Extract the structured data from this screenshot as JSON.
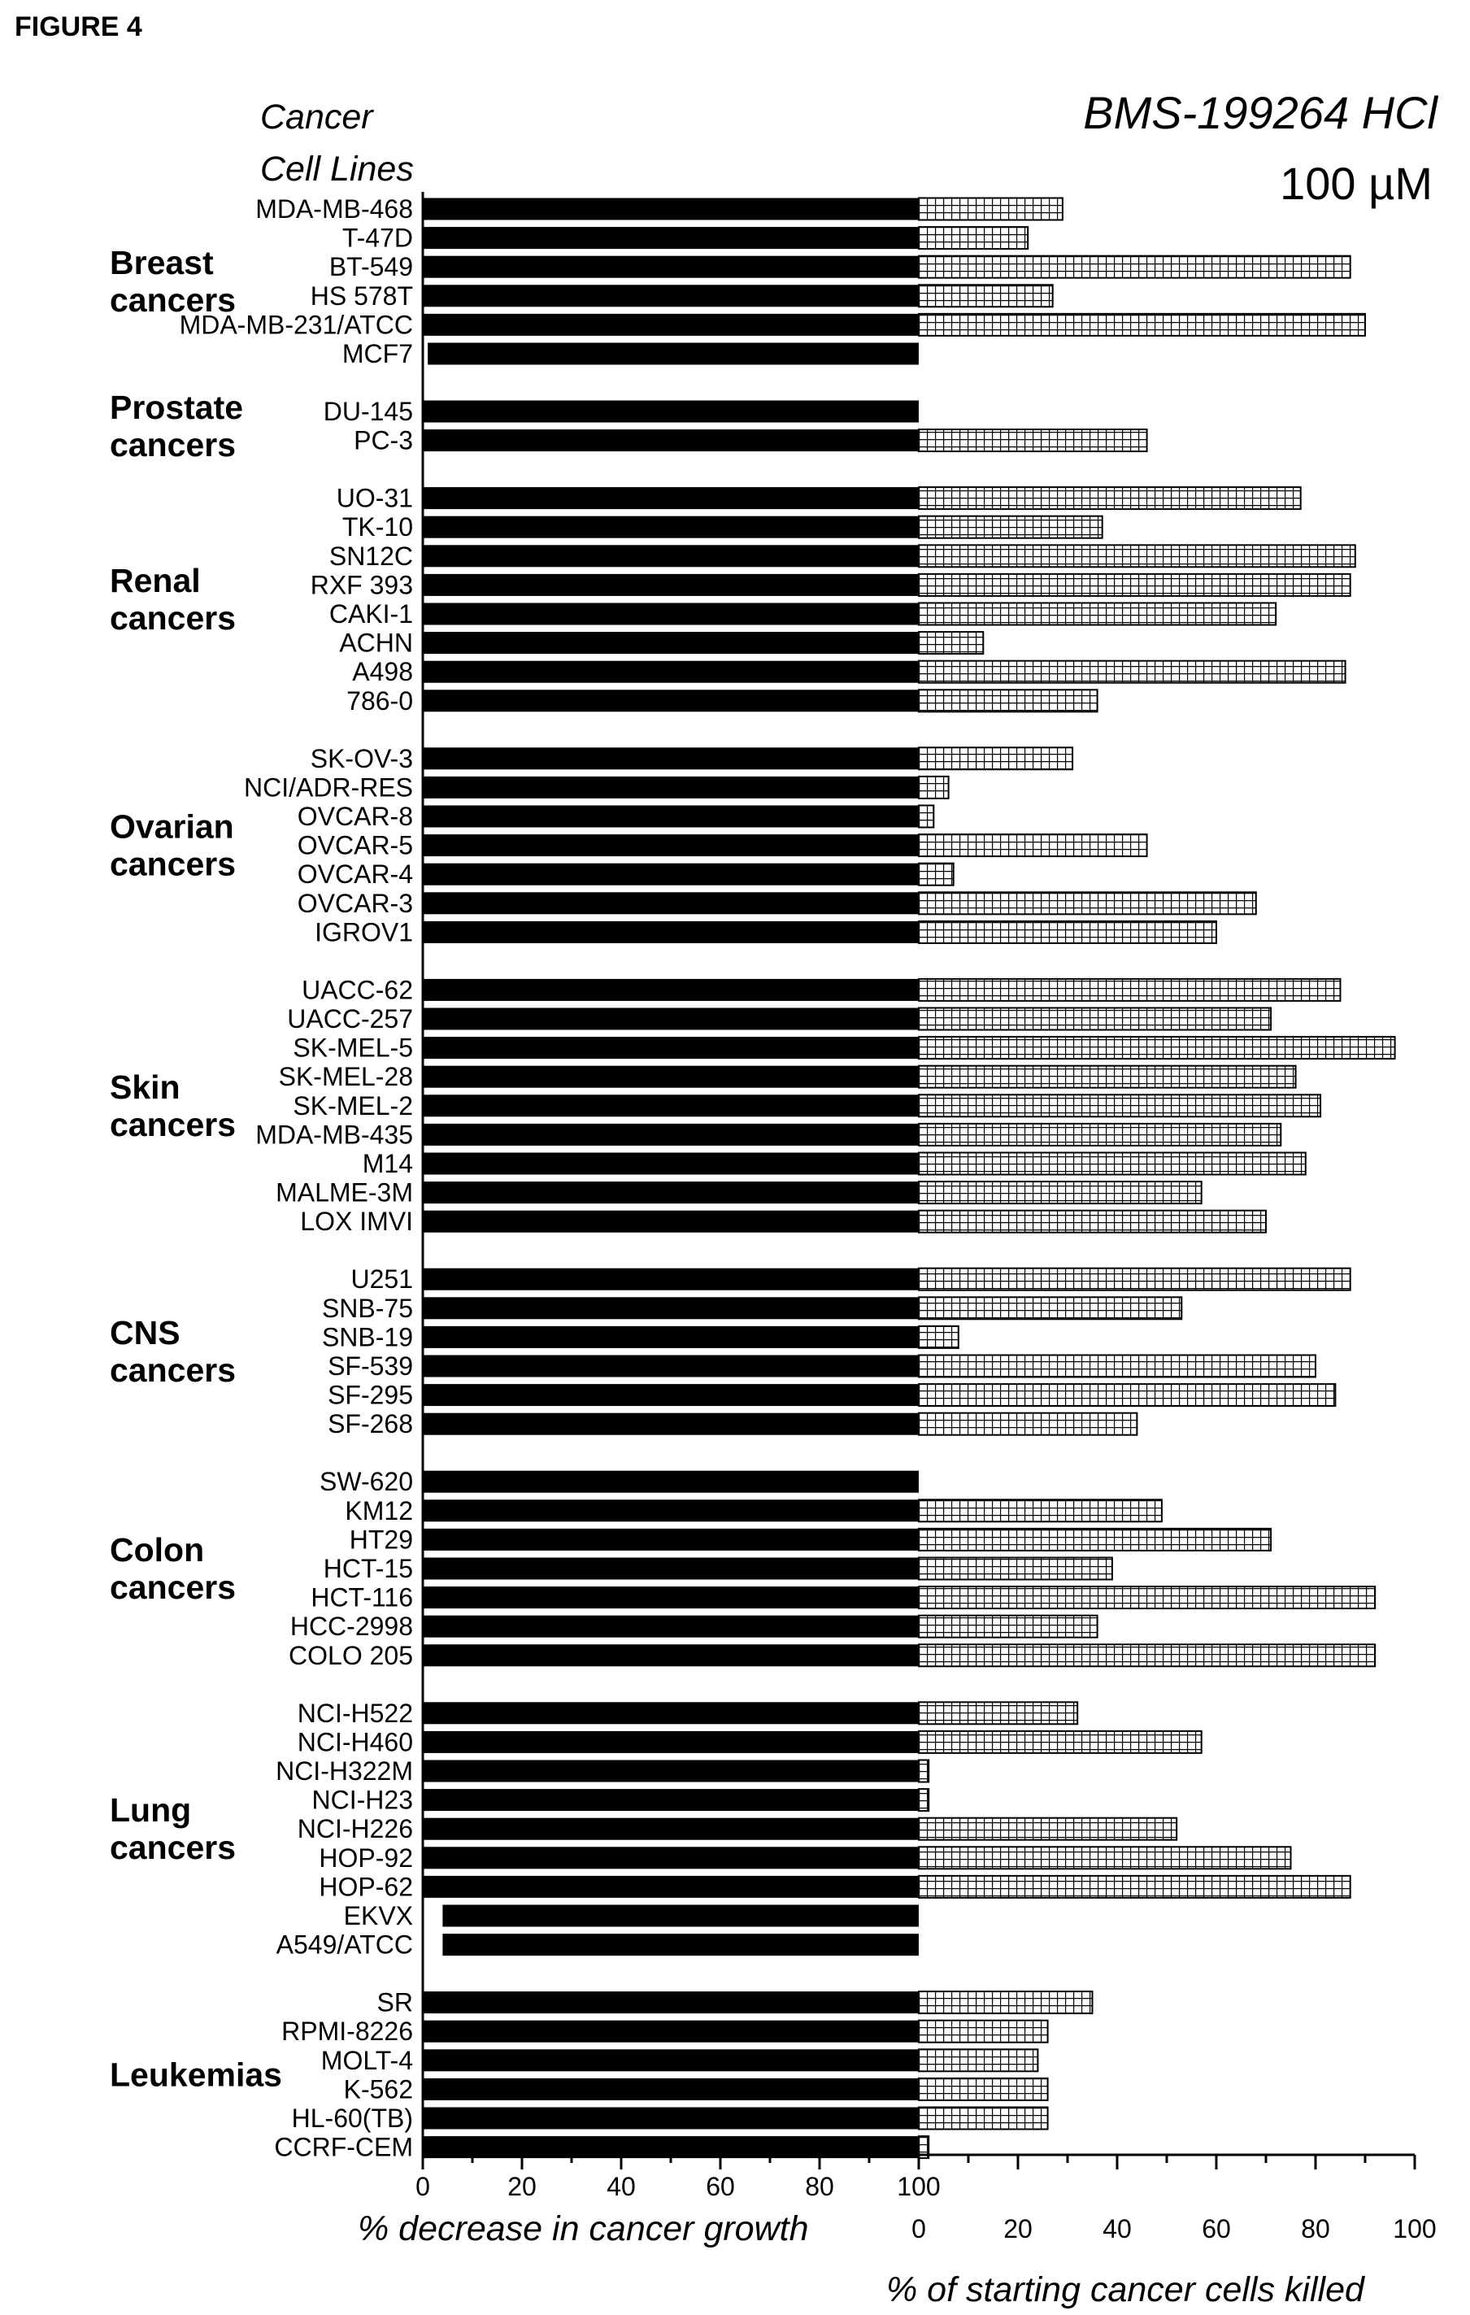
{
  "figure_label": "FIGURE 4",
  "chart_data": {
    "type": "bar",
    "title": "BMS-199264 HCl",
    "subtitle": "100 µM",
    "row_header": [
      "Cancer",
      "Cell Lines"
    ],
    "xlabel_left": "% decrease in cancer growth",
    "xlabel_right": "% of starting cancer cells killed",
    "xlim_left": [
      0,
      100
    ],
    "xlim_right": [
      0,
      100
    ],
    "xticks_left": [
      0,
      20,
      40,
      60,
      80,
      100
    ],
    "xticks_right": [
      0,
      20,
      40,
      60,
      80,
      100
    ],
    "series": [
      {
        "name": "% decrease in cancer growth",
        "color": "#000000"
      },
      {
        "name": "% of starting cancer cells killed",
        "color": "#ffffff",
        "pattern": "grid"
      }
    ],
    "groups": [
      {
        "name": [
          "Breast",
          "cancers"
        ],
        "cell_lines": [
          {
            "name": "MDA-MB-468",
            "growth_decrease": 100,
            "killed": 29
          },
          {
            "name": "T-47D",
            "growth_decrease": 100,
            "killed": 22
          },
          {
            "name": "BT-549",
            "growth_decrease": 100,
            "killed": 87
          },
          {
            "name": "HS 578T",
            "growth_decrease": 100,
            "killed": 27
          },
          {
            "name": "MDA-MB-231/ATCC",
            "growth_decrease": 100,
            "killed": 90
          },
          {
            "name": "MCF7",
            "growth_decrease": 99,
            "killed": 0
          }
        ]
      },
      {
        "name": [
          "Prostate",
          "cancers"
        ],
        "cell_lines": [
          {
            "name": "DU-145",
            "growth_decrease": 100,
            "killed": 0
          },
          {
            "name": "PC-3",
            "growth_decrease": 100,
            "killed": 46
          }
        ]
      },
      {
        "name": [
          "Renal",
          "cancers"
        ],
        "cell_lines": [
          {
            "name": "UO-31",
            "growth_decrease": 100,
            "killed": 77
          },
          {
            "name": "TK-10",
            "growth_decrease": 100,
            "killed": 37
          },
          {
            "name": "SN12C",
            "growth_decrease": 100,
            "killed": 88
          },
          {
            "name": "RXF 393",
            "growth_decrease": 100,
            "killed": 87
          },
          {
            "name": "CAKI-1",
            "growth_decrease": 100,
            "killed": 72
          },
          {
            "name": "ACHN",
            "growth_decrease": 100,
            "killed": 13
          },
          {
            "name": "A498",
            "growth_decrease": 100,
            "killed": 86
          },
          {
            "name": "786-0",
            "growth_decrease": 100,
            "killed": 36
          }
        ]
      },
      {
        "name": [
          "Ovarian",
          "cancers"
        ],
        "cell_lines": [
          {
            "name": "SK-OV-3",
            "growth_decrease": 100,
            "killed": 31
          },
          {
            "name": "NCI/ADR-RES",
            "growth_decrease": 100,
            "killed": 6
          },
          {
            "name": "OVCAR-8",
            "growth_decrease": 100,
            "killed": 3
          },
          {
            "name": "OVCAR-5",
            "growth_decrease": 100,
            "killed": 46
          },
          {
            "name": "OVCAR-4",
            "growth_decrease": 100,
            "killed": 7
          },
          {
            "name": "OVCAR-3",
            "growth_decrease": 100,
            "killed": 68
          },
          {
            "name": "IGROV1",
            "growth_decrease": 100,
            "killed": 60
          }
        ]
      },
      {
        "name": [
          "Skin",
          "cancers"
        ],
        "cell_lines": [
          {
            "name": "UACC-62",
            "growth_decrease": 100,
            "killed": 85
          },
          {
            "name": "UACC-257",
            "growth_decrease": 100,
            "killed": 71
          },
          {
            "name": "SK-MEL-5",
            "growth_decrease": 100,
            "killed": 96
          },
          {
            "name": "SK-MEL-28",
            "growth_decrease": 100,
            "killed": 76
          },
          {
            "name": "SK-MEL-2",
            "growth_decrease": 100,
            "killed": 81
          },
          {
            "name": "MDA-MB-435",
            "growth_decrease": 100,
            "killed": 73
          },
          {
            "name": "M14",
            "growth_decrease": 100,
            "killed": 78
          },
          {
            "name": "MALME-3M",
            "growth_decrease": 100,
            "killed": 57
          },
          {
            "name": "LOX IMVI",
            "growth_decrease": 100,
            "killed": 70
          }
        ]
      },
      {
        "name": [
          "CNS",
          "cancers"
        ],
        "cell_lines": [
          {
            "name": "U251",
            "growth_decrease": 100,
            "killed": 87
          },
          {
            "name": "SNB-75",
            "growth_decrease": 100,
            "killed": 53
          },
          {
            "name": "SNB-19",
            "growth_decrease": 100,
            "killed": 8
          },
          {
            "name": "SF-539",
            "growth_decrease": 100,
            "killed": 80
          },
          {
            "name": "SF-295",
            "growth_decrease": 100,
            "killed": 84
          },
          {
            "name": "SF-268",
            "growth_decrease": 100,
            "killed": 44
          }
        ]
      },
      {
        "name": [
          "Colon",
          "cancers"
        ],
        "cell_lines": [
          {
            "name": "SW-620",
            "growth_decrease": 100,
            "killed": 0
          },
          {
            "name": "KM12",
            "growth_decrease": 100,
            "killed": 49
          },
          {
            "name": "HT29",
            "growth_decrease": 100,
            "killed": 71
          },
          {
            "name": "HCT-15",
            "growth_decrease": 100,
            "killed": 39
          },
          {
            "name": "HCT-116",
            "growth_decrease": 100,
            "killed": 92
          },
          {
            "name": "HCC-2998",
            "growth_decrease": 100,
            "killed": 36
          },
          {
            "name": "COLO 205",
            "growth_decrease": 100,
            "killed": 92
          }
        ]
      },
      {
        "name": [
          "Lung",
          "cancers"
        ],
        "cell_lines": [
          {
            "name": "NCI-H522",
            "growth_decrease": 100,
            "killed": 32
          },
          {
            "name": "NCI-H460",
            "growth_decrease": 100,
            "killed": 57
          },
          {
            "name": "NCI-H322M",
            "growth_decrease": 100,
            "killed": 2
          },
          {
            "name": "NCI-H23",
            "growth_decrease": 100,
            "killed": 2
          },
          {
            "name": "NCI-H226",
            "growth_decrease": 100,
            "killed": 52
          },
          {
            "name": "HOP-92",
            "growth_decrease": 100,
            "killed": 75
          },
          {
            "name": "HOP-62",
            "growth_decrease": 100,
            "killed": 87
          },
          {
            "name": "EKVX",
            "growth_decrease": 96,
            "killed": 0
          },
          {
            "name": "A549/ATCC",
            "growth_decrease": 96,
            "killed": 0
          }
        ]
      },
      {
        "name": [
          "Leukemias"
        ],
        "cell_lines": [
          {
            "name": "SR",
            "growth_decrease": 100,
            "killed": 35
          },
          {
            "name": "RPMI-8226",
            "growth_decrease": 100,
            "killed": 26
          },
          {
            "name": "MOLT-4",
            "growth_decrease": 100,
            "killed": 24
          },
          {
            "name": "K-562",
            "growth_decrease": 100,
            "killed": 26
          },
          {
            "name": "HL-60(TB)",
            "growth_decrease": 100,
            "killed": 26
          },
          {
            "name": "CCRF-CEM",
            "growth_decrease": 100,
            "killed": 2
          }
        ]
      }
    ]
  }
}
